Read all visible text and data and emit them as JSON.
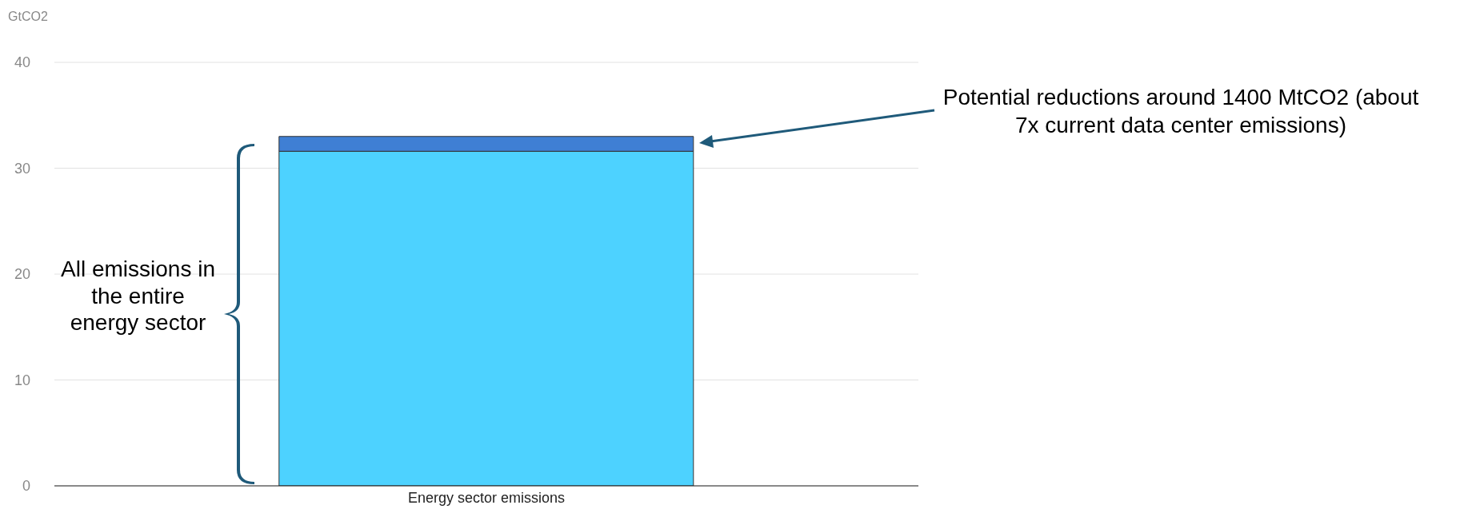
{
  "chart_data": {
    "type": "bar",
    "ylabel": "GtCO2",
    "categories": [
      "Energy sector emissions"
    ],
    "stacked": true,
    "series": [
      {
        "color": "#4dd2ff",
        "values": [
          31.6
        ]
      },
      {
        "color": "#3f7fd4",
        "values": [
          1.4
        ]
      }
    ],
    "ylim": [
      0,
      40
    ],
    "yticks": [
      0,
      10,
      20,
      30,
      40
    ],
    "grid": "y",
    "legend": false,
    "annotations": [
      "All emissions in the entire energy sector",
      "Potential reductions around 1400 MtCO2 (about 7x current data center emissions)"
    ]
  }
}
